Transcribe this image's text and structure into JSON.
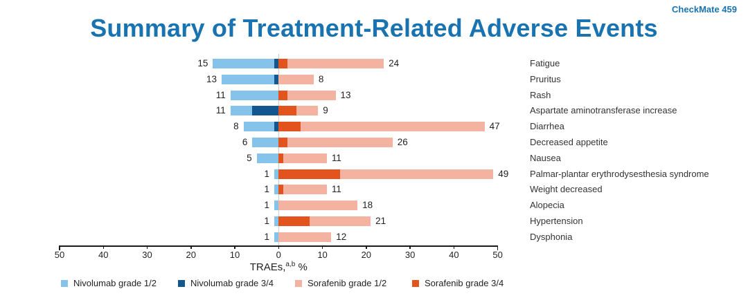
{
  "header": {
    "study_label": "CheckMate 459"
  },
  "accent_color": "#1873B0",
  "chart_data": {
    "type": "bar",
    "variant": "diverging-stacked-horizontal",
    "title": "Summary of Treatment-Related Adverse Events",
    "xlabel": "TRAEs, %",
    "xlabel_parts": {
      "main": "TRAEs,",
      "superscript": "a,b",
      "suffix": " %"
    },
    "x_ticks": [
      "50",
      "40",
      "30",
      "20",
      "10",
      "0",
      "10",
      "20",
      "30",
      "40",
      "50"
    ],
    "axis_range_each_side": [
      0,
      50
    ],
    "grid": "zero-line-only",
    "legend_position": "bottom",
    "left_group": "Nivolumab",
    "right_group": "Sorafenib",
    "series": [
      {
        "name": "Nivolumab grade 1/2",
        "color": "#85C3EA"
      },
      {
        "name": "Nivolumab grade 3/4",
        "color": "#14568E"
      },
      {
        "name": "Sorafenib grade 1/2",
        "color": "#F4B2A0"
      },
      {
        "name": "Sorafenib grade 3/4",
        "color": "#E3531D"
      }
    ],
    "rows": [
      {
        "category": "Fatigue",
        "nivolumab_total": 15,
        "nivolumab_grade34": 1,
        "sorafenib_total": 24,
        "sorafenib_grade34": 2
      },
      {
        "category": "Pruritus",
        "nivolumab_total": 13,
        "nivolumab_grade34": 1,
        "sorafenib_total": 8,
        "sorafenib_grade34": 0
      },
      {
        "category": "Rash",
        "nivolumab_total": 11,
        "nivolumab_grade34": 0,
        "sorafenib_total": 13,
        "sorafenib_grade34": 2
      },
      {
        "category": "Aspartate aminotransferase increase",
        "nivolumab_total": 11,
        "nivolumab_grade34": 6,
        "sorafenib_total": 9,
        "sorafenib_grade34": 4
      },
      {
        "category": "Diarrhea",
        "nivolumab_total": 8,
        "nivolumab_grade34": 1,
        "sorafenib_total": 47,
        "sorafenib_grade34": 5
      },
      {
        "category": "Decreased appetite",
        "nivolumab_total": 6,
        "nivolumab_grade34": 0,
        "sorafenib_total": 26,
        "sorafenib_grade34": 2
      },
      {
        "category": "Nausea",
        "nivolumab_total": 5,
        "nivolumab_grade34": 0,
        "sorafenib_total": 11,
        "sorafenib_grade34": 1
      },
      {
        "category": "Palmar-plantar erythrodysesthesia syndrome",
        "nivolumab_total": 1,
        "nivolumab_grade34": 0,
        "sorafenib_total": 49,
        "sorafenib_grade34": 14
      },
      {
        "category": "Weight decreased",
        "nivolumab_total": 1,
        "nivolumab_grade34": 0,
        "sorafenib_total": 11,
        "sorafenib_grade34": 1
      },
      {
        "category": "Alopecia",
        "nivolumab_total": 1,
        "nivolumab_grade34": 0,
        "sorafenib_total": 18,
        "sorafenib_grade34": 0
      },
      {
        "category": "Hypertension",
        "nivolumab_total": 1,
        "nivolumab_grade34": 0,
        "sorafenib_total": 21,
        "sorafenib_grade34": 7
      },
      {
        "category": "Dysphonia",
        "nivolumab_total": 1,
        "nivolumab_grade34": 0,
        "sorafenib_total": 12,
        "sorafenib_grade34": 0
      }
    ]
  }
}
